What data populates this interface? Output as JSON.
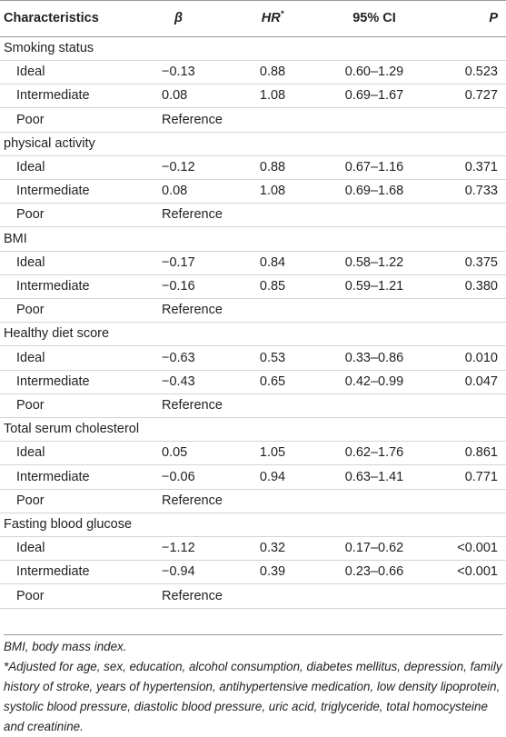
{
  "table": {
    "columns": [
      "Characteristics",
      "β",
      "HR",
      "95% CI",
      "P"
    ],
    "hr_mark": "*",
    "groups": [
      {
        "name": "Smoking status",
        "rows": [
          {
            "label": "Ideal",
            "beta": "−0.13",
            "hr": "0.88",
            "ci": "0.60–1.29",
            "p": "0.523"
          },
          {
            "label": "Intermediate",
            "beta": "0.08",
            "hr": "1.08",
            "ci": "0.69–1.67",
            "p": "0.727"
          },
          {
            "label": "Poor",
            "beta": "Reference"
          }
        ]
      },
      {
        "name": "physical activity",
        "rows": [
          {
            "label": "Ideal",
            "beta": "−0.12",
            "hr": "0.88",
            "ci": "0.67–1.16",
            "p": "0.371"
          },
          {
            "label": "Intermediate",
            "beta": "0.08",
            "hr": "1.08",
            "ci": "0.69–1.68",
            "p": "0.733"
          },
          {
            "label": "Poor",
            "beta": "Reference"
          }
        ]
      },
      {
        "name": "BMI",
        "rows": [
          {
            "label": "Ideal",
            "beta": "−0.17",
            "hr": "0.84",
            "ci": "0.58–1.22",
            "p": "0.375"
          },
          {
            "label": "Intermediate",
            "beta": "−0.16",
            "hr": "0.85",
            "ci": "0.59–1.21",
            "p": "0.380"
          },
          {
            "label": "Poor",
            "beta": "Reference"
          }
        ]
      },
      {
        "name": "Healthy diet score",
        "rows": [
          {
            "label": "Ideal",
            "beta": "−0.63",
            "hr": "0.53",
            "ci": "0.33–0.86",
            "p": "0.010"
          },
          {
            "label": "Intermediate",
            "beta": "−0.43",
            "hr": "0.65",
            "ci": "0.42–0.99",
            "p": "0.047"
          },
          {
            "label": "Poor",
            "beta": "Reference"
          }
        ]
      },
      {
        "name": "Total serum cholesterol",
        "rows": [
          {
            "label": "Ideal",
            "beta": "0.05",
            "hr": "1.05",
            "ci": "0.62–1.76",
            "p": "0.861"
          },
          {
            "label": "Intermediate",
            "beta": "−0.06",
            "hr": "0.94",
            "ci": "0.63–1.41",
            "p": "0.771"
          },
          {
            "label": "Poor",
            "beta": "Reference"
          }
        ]
      },
      {
        "name": "Fasting blood glucose",
        "rows": [
          {
            "label": "Ideal",
            "beta": "−1.12",
            "hr": "0.32",
            "ci": "0.17–0.62",
            "p": "<0.001"
          },
          {
            "label": "Intermediate",
            "beta": "−0.94",
            "hr": "0.39",
            "ci": "0.23–0.66",
            "p": "<0.001"
          },
          {
            "label": "Poor",
            "beta": "Reference"
          }
        ]
      }
    ]
  },
  "footnotes": [
    "BMI, body mass index.",
    "*Adjusted for age, sex, education, alcohol consumption, diabetes mellitus, depression, family history of stroke, years of hypertension, antihypertensive medication, low density lipoprotein, systolic blood pressure, diastolic blood pressure, uric acid, triglyceride, total homocysteine and creatinine."
  ]
}
